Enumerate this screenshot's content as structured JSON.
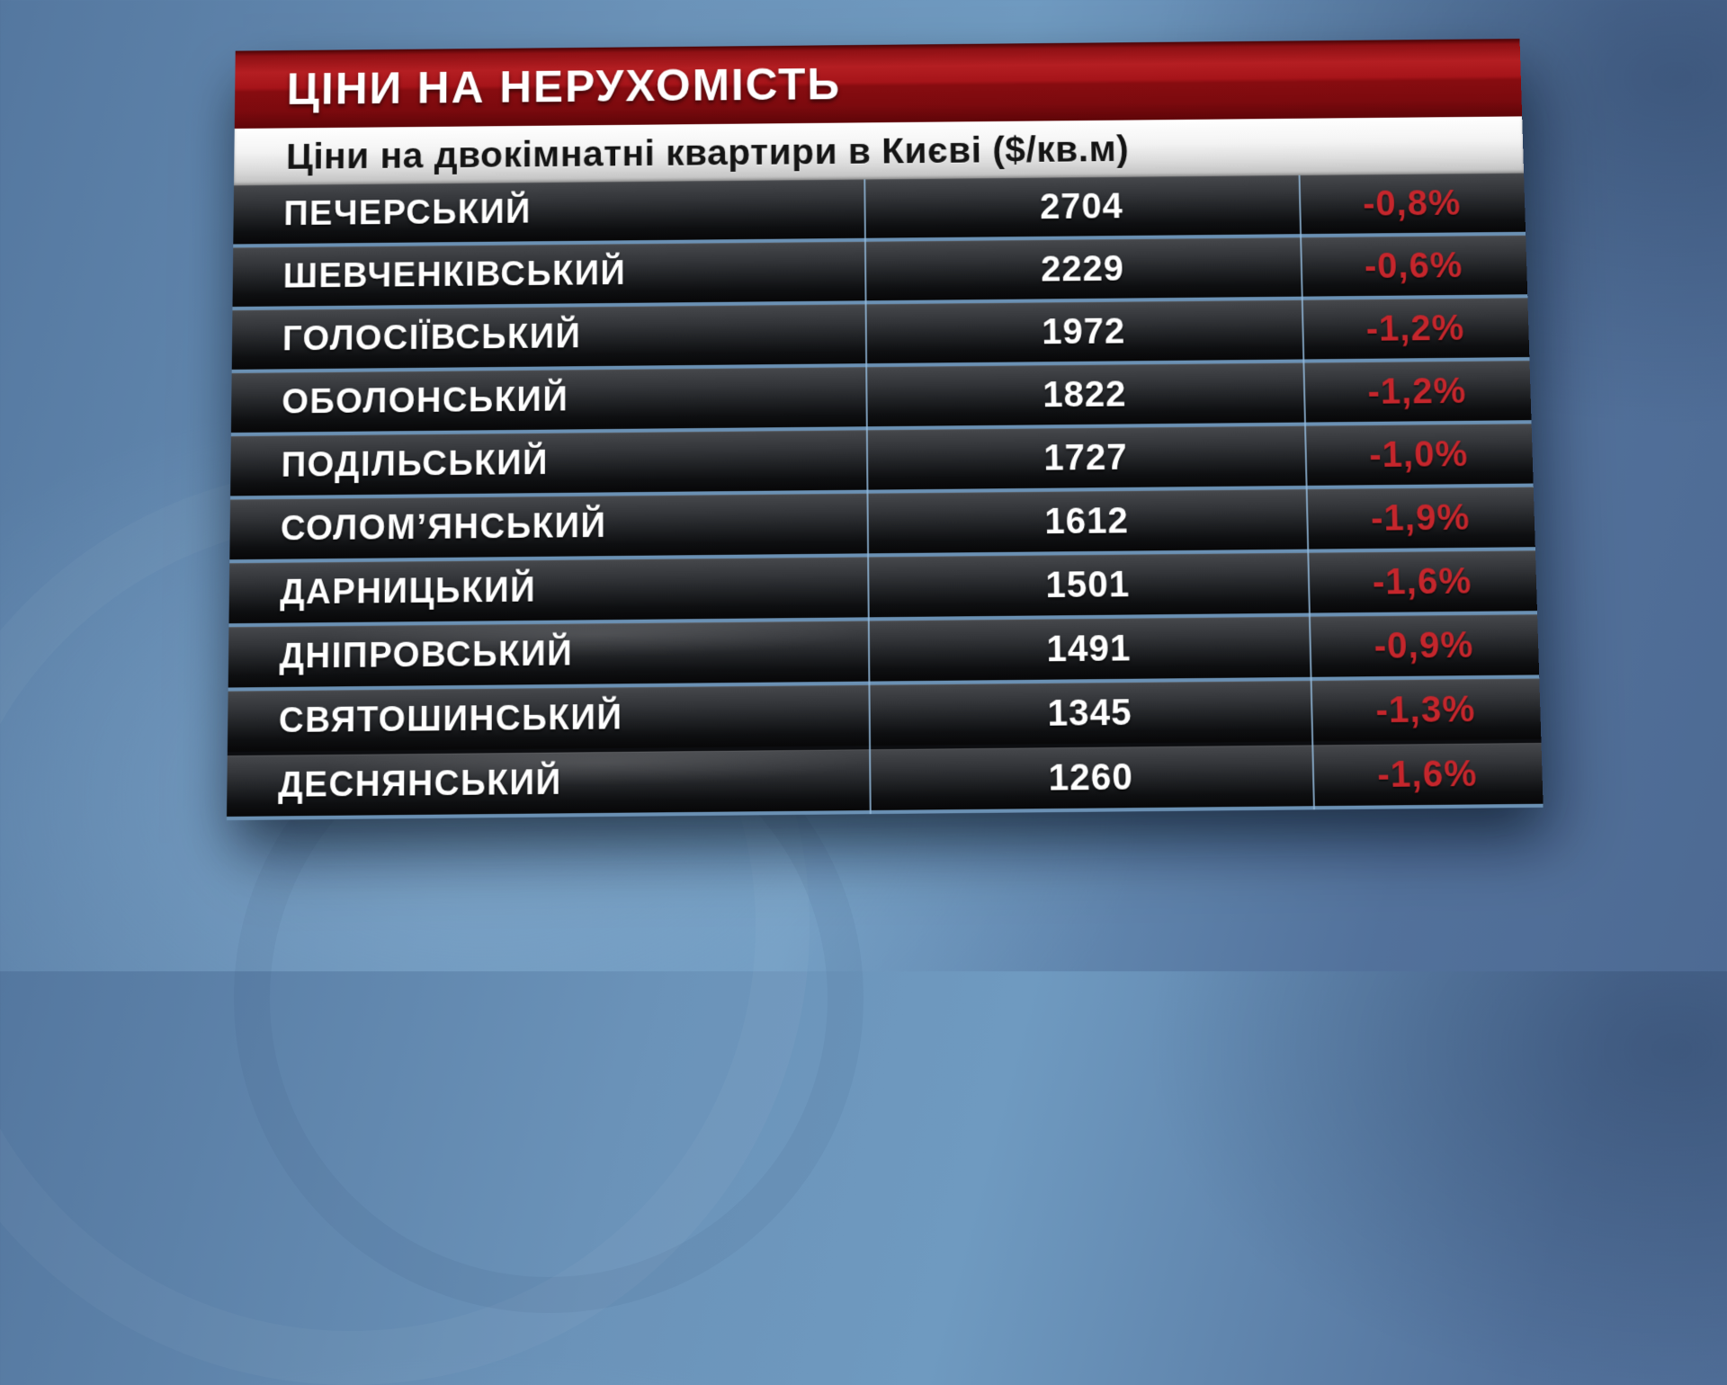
{
  "header": {
    "title": "ЦІНИ НА НЕРУХОМІСТЬ"
  },
  "subtitle": {
    "text": "Ціни на двокімнатні квартири в Києві ($/кв.м)"
  },
  "chart_data": {
    "type": "table",
    "section_title": "ЦІНИ НА НЕРУХОМІСТЬ",
    "title": "Ціни на двокімнатні квартири в Києві ($/кв.м)",
    "unit": "$/кв.м",
    "rows": [
      {
        "district": "ПЕЧЕРСЬКИЙ",
        "price": "2704",
        "change": "-0,8%"
      },
      {
        "district": "ШЕВЧЕНКІВСЬКИЙ",
        "price": "2229",
        "change": "-0,6%"
      },
      {
        "district": "ГОЛОСІЇВСЬКИЙ",
        "price": "1972",
        "change": "-1,2%"
      },
      {
        "district": "ОБОЛОНСЬКИЙ",
        "price": "1822",
        "change": "-1,2%"
      },
      {
        "district": "ПОДІЛЬСЬКИЙ",
        "price": "1727",
        "change": "-1,0%"
      },
      {
        "district": "СОЛОМ’ЯНСЬКИЙ",
        "price": "1612",
        "change": "-1,9%"
      },
      {
        "district": "ДАРНИЦЬКИЙ",
        "price": "1501",
        "change": "-1,6%"
      },
      {
        "district": "ДНІПРОВСЬКИЙ",
        "price": "1491",
        "change": "-0,9%"
      },
      {
        "district": "СВЯТОШИНСЬКИЙ",
        "price": "1345",
        "change": "-1,3%"
      },
      {
        "district": "ДЕСНЯНСЬКИЙ",
        "price": "1260",
        "change": "-1,6%"
      }
    ]
  },
  "colors": {
    "background_blue": "#6b93b9",
    "banner_red": "#a5161b",
    "row_dark": "#1d1f22",
    "separator_blue": "#6b91b4",
    "negative_red": "#c5262c",
    "title_text": "#ffffff",
    "subtitle_text": "#141414"
  }
}
